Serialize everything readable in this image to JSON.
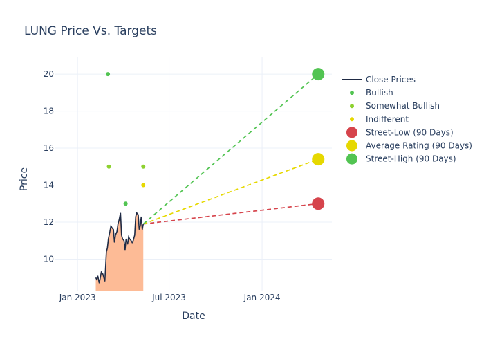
{
  "chart_data": {
    "type": "line",
    "title": "LUNG Price Vs. Targets",
    "xlabel": "Date",
    "ylabel": "Price",
    "x_ticks": [
      "Jan 2023",
      "Jul 2023",
      "Jan 2024"
    ],
    "y_ticks": [
      10,
      12,
      14,
      16,
      18,
      20
    ],
    "x_range": [
      "2022-11-18",
      "2024-05-18"
    ],
    "ylim": [
      8.3,
      20.9
    ],
    "grid": true,
    "legend_position": "right",
    "series": [
      {
        "name": "Close Prices",
        "kind": "line+area",
        "color": "#1f2a44",
        "fill_color": "#fdbb96",
        "points": [
          [
            "2023-02-06",
            9.0
          ],
          [
            "2023-02-08",
            8.9
          ],
          [
            "2023-02-10",
            9.1
          ],
          [
            "2023-02-13",
            8.7
          ],
          [
            "2023-02-15",
            9.0
          ],
          [
            "2023-02-17",
            9.3
          ],
          [
            "2023-02-20",
            9.2
          ],
          [
            "2023-02-22",
            9.0
          ],
          [
            "2023-02-24",
            8.8
          ],
          [
            "2023-02-27",
            10.4
          ],
          [
            "2023-03-01",
            10.6
          ],
          [
            "2023-03-03",
            11.1
          ],
          [
            "2023-03-06",
            11.5
          ],
          [
            "2023-03-08",
            11.8
          ],
          [
            "2023-03-10",
            11.7
          ],
          [
            "2023-03-13",
            11.6
          ],
          [
            "2023-03-15",
            10.9
          ],
          [
            "2023-03-17",
            11.3
          ],
          [
            "2023-03-20",
            11.5
          ],
          [
            "2023-03-22",
            11.9
          ],
          [
            "2023-03-24",
            12.1
          ],
          [
            "2023-03-27",
            12.5
          ],
          [
            "2023-03-29",
            11.3
          ],
          [
            "2023-03-31",
            11.1
          ],
          [
            "2023-04-03",
            11.0
          ],
          [
            "2023-04-05",
            10.5
          ],
          [
            "2023-04-07",
            11.1
          ],
          [
            "2023-04-10",
            10.8
          ],
          [
            "2023-04-12",
            11.2
          ],
          [
            "2023-04-14",
            11.1
          ],
          [
            "2023-04-17",
            11.0
          ],
          [
            "2023-04-19",
            10.9
          ],
          [
            "2023-04-21",
            11.0
          ],
          [
            "2023-04-24",
            11.3
          ],
          [
            "2023-04-26",
            12.3
          ],
          [
            "2023-04-28",
            12.5
          ],
          [
            "2023-05-01",
            12.4
          ],
          [
            "2023-05-03",
            11.6
          ],
          [
            "2023-05-05",
            11.8
          ],
          [
            "2023-05-07",
            12.3
          ],
          [
            "2023-05-09",
            11.6
          ],
          [
            "2023-05-11",
            11.9
          ]
        ]
      },
      {
        "name": "Bullish",
        "kind": "scatter",
        "color": "#52c452",
        "points": [
          [
            "2023-03-02",
            20.0
          ],
          [
            "2023-04-06",
            13.0
          ]
        ]
      },
      {
        "name": "Somewhat Bullish",
        "kind": "scatter",
        "color": "#8dd12f",
        "points": [
          [
            "2023-03-04",
            15.0
          ],
          [
            "2023-05-11",
            15.0
          ]
        ]
      },
      {
        "name": "Indifferent",
        "kind": "scatter",
        "color": "#e6d800",
        "points": [
          [
            "2023-05-11",
            14.0
          ]
        ]
      },
      {
        "name": "Street-Low (90 Days)",
        "kind": "target",
        "color": "#d6444c",
        "start": [
          "2023-05-11",
          11.9
        ],
        "end": [
          "2024-04-21",
          13.0
        ]
      },
      {
        "name": "Average Rating (90 Days)",
        "kind": "target",
        "color": "#e6d800",
        "start": [
          "2023-05-11",
          11.9
        ],
        "end": [
          "2024-04-21",
          15.4
        ]
      },
      {
        "name": "Street-High (90 Days)",
        "kind": "target",
        "color": "#52c452",
        "start": [
          "2023-05-11",
          11.9
        ],
        "end": [
          "2024-04-21",
          20.0
        ]
      }
    ]
  }
}
